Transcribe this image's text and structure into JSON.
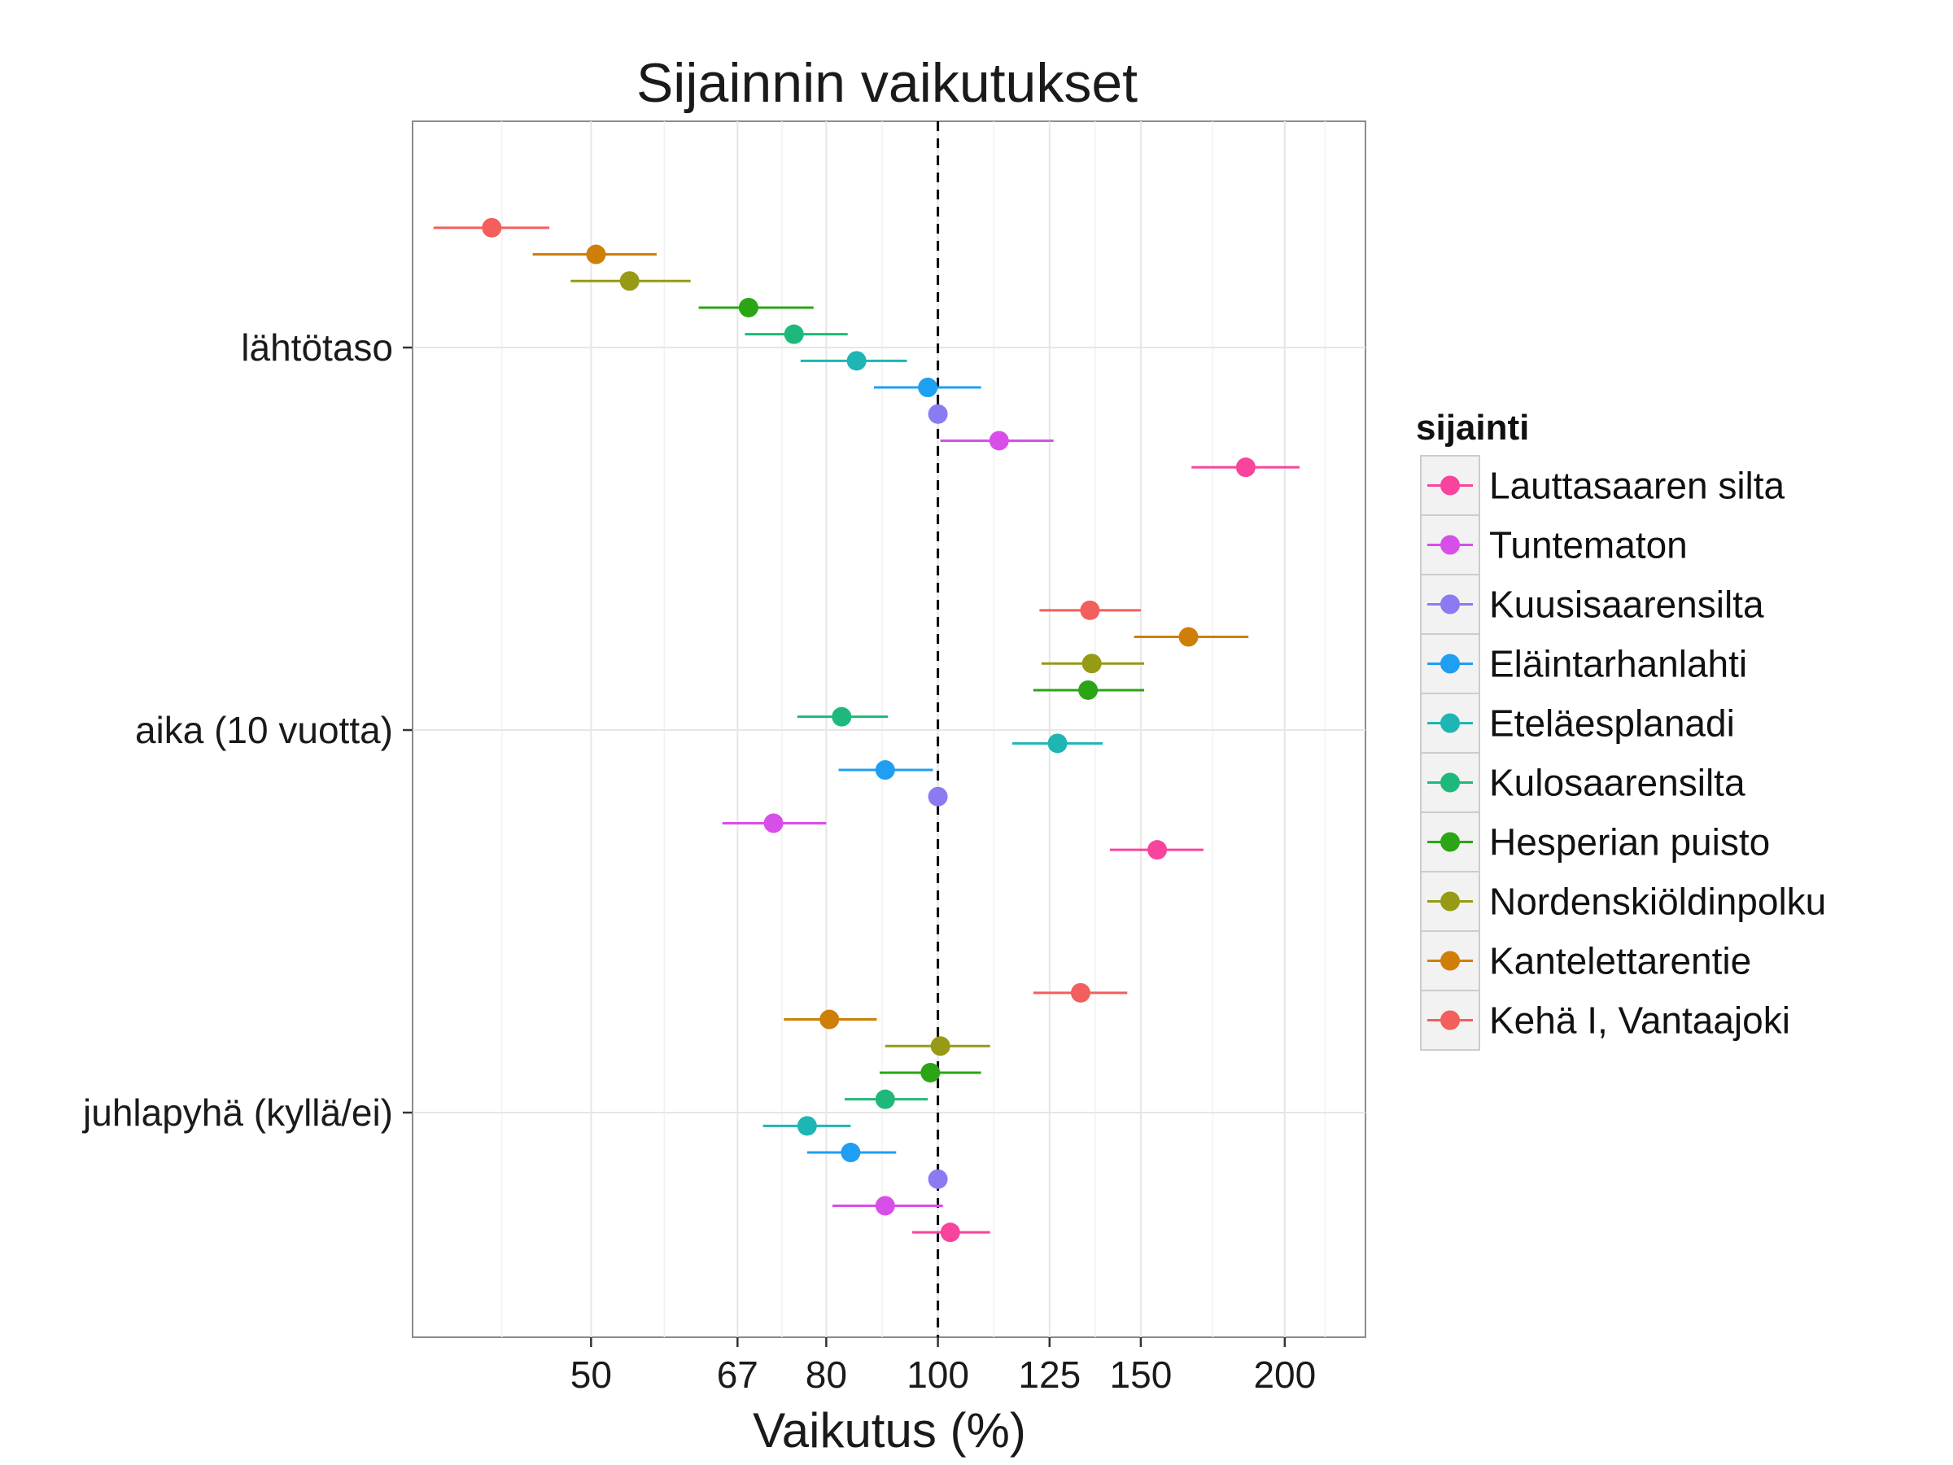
{
  "chart_data": {
    "type": "scatter",
    "title": "Sijainnin vaikutukset",
    "xlabel": "Vaikutus (%)",
    "ylabel": "",
    "x_scale": "log",
    "xlim": [
      35,
      235
    ],
    "x_ticks": [
      50,
      67,
      80,
      100,
      125,
      150,
      200
    ],
    "x_tick_labels": [
      "50",
      "67",
      "80",
      "100",
      "125",
      "150",
      "200"
    ],
    "reference_line": 100,
    "grid": true,
    "categories": [
      "lähtötaso",
      "aika (10 vuotta)",
      "juhlapyhä (kyllä/ei)"
    ],
    "legend": {
      "title": "sijainti",
      "position": "right"
    },
    "series": [
      {
        "name": "Lauttasaaren silta",
        "color": "#F8449C",
        "points": [
          {
            "x": 185,
            "lo": 166,
            "hi": 206
          },
          {
            "x": 155,
            "lo": 141,
            "hi": 170
          },
          {
            "x": 102.5,
            "lo": 95,
            "hi": 111
          }
        ]
      },
      {
        "name": "Tuntematon",
        "color": "#D74FE8",
        "points": [
          {
            "x": 113,
            "lo": 100.5,
            "hi": 126
          },
          {
            "x": 72,
            "lo": 65,
            "hi": 80
          },
          {
            "x": 90,
            "lo": 81,
            "hi": 101
          }
        ]
      },
      {
        "name": "Kuusisaarensilta",
        "color": "#8B7BF2",
        "points": [
          {
            "x": 100,
            "lo": 100,
            "hi": 100
          },
          {
            "x": 100,
            "lo": 100,
            "hi": 100
          },
          {
            "x": 100,
            "lo": 100,
            "hi": 100
          }
        ]
      },
      {
        "name": "Eläintarhanlahti",
        "color": "#1E9FF2",
        "points": [
          {
            "x": 98,
            "lo": 88,
            "hi": 109
          },
          {
            "x": 90,
            "lo": 82,
            "hi": 99
          },
          {
            "x": 84,
            "lo": 77,
            "hi": 92
          }
        ]
      },
      {
        "name": "Eteläesplanadi",
        "color": "#1EB5B5",
        "points": [
          {
            "x": 85,
            "lo": 76,
            "hi": 94
          },
          {
            "x": 127,
            "lo": 116,
            "hi": 139
          },
          {
            "x": 77,
            "lo": 70.5,
            "hi": 84
          }
        ]
      },
      {
        "name": "Kulosaarensilta",
        "color": "#1EB97A",
        "points": [
          {
            "x": 75,
            "lo": 68,
            "hi": 83.5
          },
          {
            "x": 82.5,
            "lo": 75.5,
            "hi": 90.5
          },
          {
            "x": 90,
            "lo": 83,
            "hi": 98
          }
        ]
      },
      {
        "name": "Hesperian puisto",
        "color": "#2BA415",
        "points": [
          {
            "x": 68.5,
            "lo": 62,
            "hi": 78
          },
          {
            "x": 135,
            "lo": 121,
            "hi": 151
          },
          {
            "x": 98.5,
            "lo": 89,
            "hi": 109
          }
        ]
      },
      {
        "name": "Nordenskiöldinpolku",
        "color": "#969A15",
        "points": [
          {
            "x": 54,
            "lo": 48,
            "hi": 61
          },
          {
            "x": 136,
            "lo": 123,
            "hi": 151
          },
          {
            "x": 100.5,
            "lo": 90,
            "hi": 111
          }
        ]
      },
      {
        "name": "Kantelettarentie",
        "color": "#CF7E08",
        "points": [
          {
            "x": 50.5,
            "lo": 44.5,
            "hi": 57
          },
          {
            "x": 165,
            "lo": 148,
            "hi": 186
          },
          {
            "x": 80.5,
            "lo": 73.5,
            "hi": 88.5
          }
        ]
      },
      {
        "name": "Kehä I, Vantaajoki",
        "color": "#F25F5C",
        "points": [
          {
            "x": 41,
            "lo": 36.5,
            "hi": 46
          },
          {
            "x": 135.5,
            "lo": 122.5,
            "hi": 150
          },
          {
            "x": 133,
            "lo": 121,
            "hi": 146
          }
        ]
      }
    ]
  }
}
